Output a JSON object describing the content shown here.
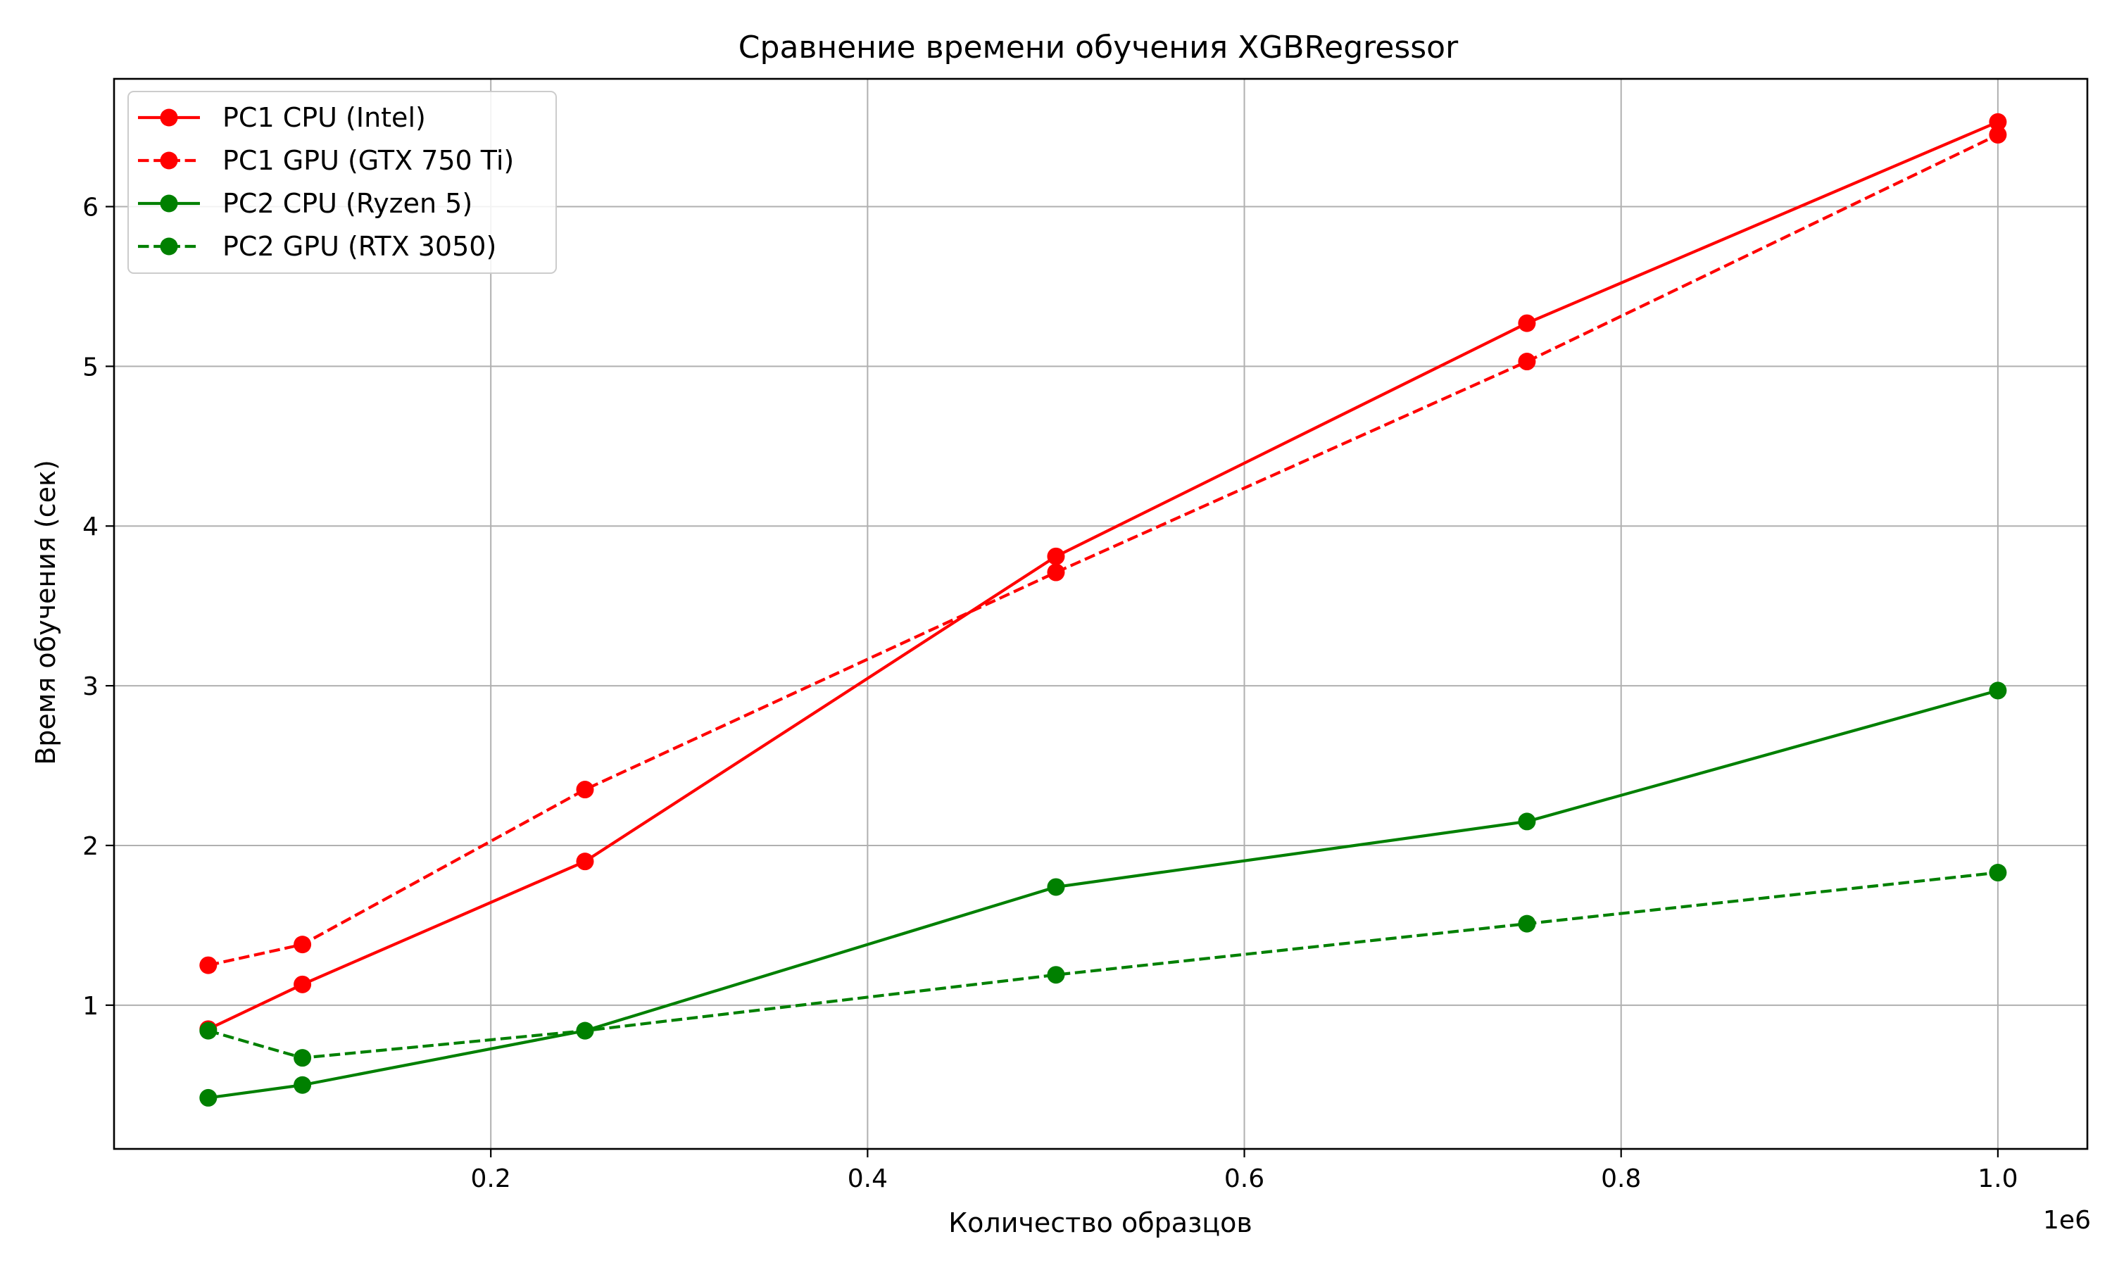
{
  "chart_data": {
    "type": "line",
    "title": "Сравнение времени обучения XGBRegressor",
    "xlabel": "Количество образцов",
    "ylabel": "Время обучения (сек)",
    "x_offset_label": "1e6",
    "xlim": [
      0.0,
      1.0475
    ],
    "ylim": [
      0.1,
      6.8
    ],
    "xticks": [
      0.2,
      0.4,
      0.6,
      0.8,
      1.0
    ],
    "xtick_labels": [
      "0.2",
      "0.4",
      "0.6",
      "0.8",
      "1.0"
    ],
    "yticks": [
      1,
      2,
      3,
      4,
      5,
      6
    ],
    "ytick_labels": [
      "1",
      "2",
      "3",
      "4",
      "5",
      "6"
    ],
    "grid": true,
    "legend_position": "top-left",
    "x": [
      0.05,
      0.1,
      0.25,
      0.5,
      0.75,
      1.0
    ],
    "series": [
      {
        "name": "PC1 CPU (Intel)",
        "color": "#ff0000",
        "line_style": "solid",
        "values": [
          0.85,
          1.13,
          1.9,
          3.81,
          5.27,
          6.53
        ]
      },
      {
        "name": "PC1 GPU (GTX 750 Ti)",
        "color": "#ff0000",
        "line_style": "dashed",
        "values": [
          1.25,
          1.38,
          2.35,
          3.71,
          5.03,
          6.45
        ]
      },
      {
        "name": "PC2 CPU (Ryzen 5)",
        "color": "#008000",
        "line_style": "solid",
        "values": [
          0.42,
          0.5,
          0.84,
          1.74,
          2.15,
          2.97
        ]
      },
      {
        "name": "PC2 GPU (RTX 3050)",
        "color": "#008000",
        "line_style": "dashed",
        "values": [
          0.84,
          0.67,
          0.84,
          1.19,
          1.51,
          1.83
        ]
      }
    ]
  }
}
